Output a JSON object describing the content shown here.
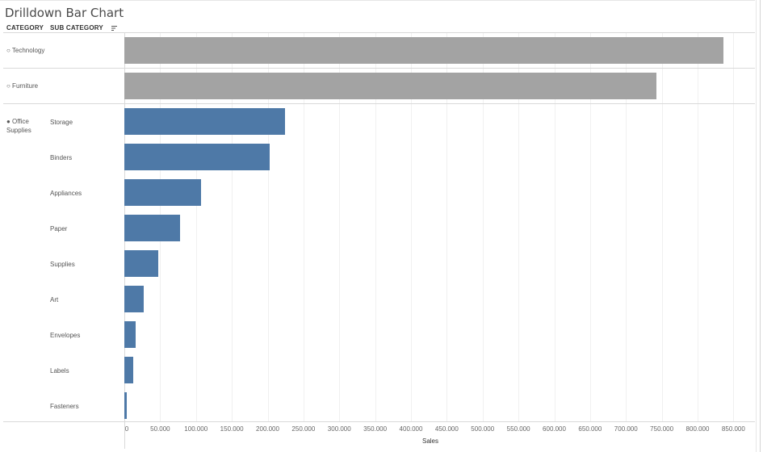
{
  "title": "Drilldown Bar Chart",
  "headers": {
    "category": "CATEGORY",
    "sub_category": "SUB CATEGORY"
  },
  "colors": {
    "collapsed": "#a3a3a3",
    "expanded": "#4e79a7"
  },
  "chart_data": {
    "type": "bar",
    "orientation": "horizontal",
    "xlabel": "Sales",
    "xlim": [
      0,
      880000
    ],
    "tick_values": [
      0,
      50000,
      100000,
      150000,
      200000,
      250000,
      300000,
      350000,
      400000,
      450000,
      500000,
      550000,
      600000,
      650000,
      700000,
      750000,
      800000,
      850000
    ],
    "tick_labels": [
      "0",
      "50.000",
      "100.000",
      "150.000",
      "200.000",
      "250.000",
      "300.000",
      "350.000",
      "400.000",
      "450.000",
      "500.000",
      "550.000",
      "600.000",
      "650.000",
      "700.000",
      "750.000",
      "800.000",
      "850.000"
    ],
    "grid": true,
    "categories": [
      {
        "label": "Technology",
        "marker": "○",
        "expanded": false,
        "value": 836000
      },
      {
        "label": "Furniture",
        "marker": "○",
        "expanded": false,
        "value": 742000
      },
      {
        "label": "Office Supplies",
        "label_lines": [
          "Office",
          "Supplies"
        ],
        "marker": "●",
        "expanded": true,
        "subcategories": [
          {
            "label": "Storage",
            "value": 224000
          },
          {
            "label": "Binders",
            "value": 203000
          },
          {
            "label": "Appliances",
            "value": 107000
          },
          {
            "label": "Paper",
            "value": 78000
          },
          {
            "label": "Supplies",
            "value": 47000
          },
          {
            "label": "Art",
            "value": 27000
          },
          {
            "label": "Envelopes",
            "value": 16000
          },
          {
            "label": "Labels",
            "value": 12000
          },
          {
            "label": "Fasteners",
            "value": 3000
          }
        ]
      }
    ]
  }
}
